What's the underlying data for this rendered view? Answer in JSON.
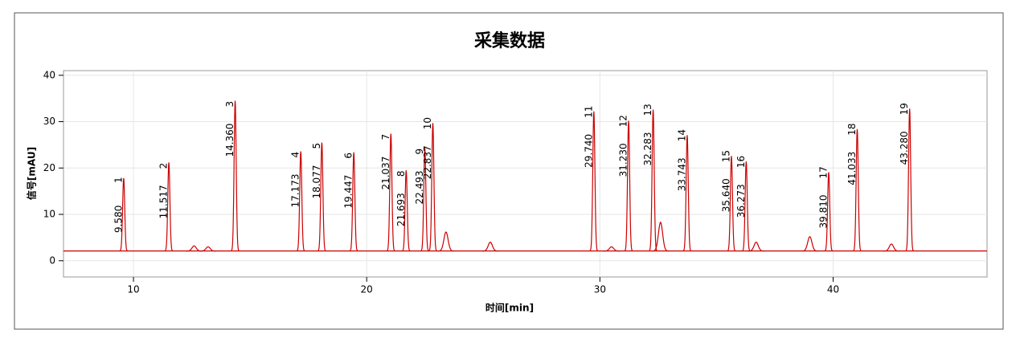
{
  "chart_data": {
    "type": "line",
    "title": "采集数据",
    "xlabel": "时间[min]",
    "ylabel": "信号[mAU]",
    "color": "#cc0000",
    "grid": true,
    "xlim": [
      7.0,
      46.6
    ],
    "ylim": [
      -3.5,
      41
    ],
    "xticks": [
      10,
      20,
      30,
      40
    ],
    "yticks": [
      0,
      10,
      20,
      30,
      40
    ],
    "baseline": 2.1,
    "x": [
      9.58,
      11.517,
      14.36,
      17.173,
      18.077,
      19.447,
      21.037,
      21.693,
      22.493,
      22.837,
      29.74,
      31.23,
      32.283,
      33.743,
      35.64,
      36.273,
      39.81,
      41.033,
      43.28
    ],
    "x_labels": [
      "9.580",
      "11.517",
      "14.360",
      "17.173",
      "18.077",
      "19.447",
      "21.037",
      "21.693",
      "22.493",
      "22.837",
      "29.740",
      "31.230",
      "32.283",
      "33.743",
      "35.640",
      "36.273",
      "39.810",
      "41.033",
      "43.280"
    ],
    "values": [
      17.8,
      21.2,
      34.5,
      23.6,
      25.5,
      23.4,
      27.4,
      19.5,
      24.3,
      29.7,
      32.2,
      30.2,
      32.6,
      27.1,
      22.6,
      21.4,
      19.1,
      28.4,
      32.8
    ],
    "peak_numbers": [
      1,
      2,
      3,
      4,
      5,
      6,
      7,
      8,
      9,
      10,
      11,
      12,
      13,
      14,
      15,
      16,
      17,
      18,
      19
    ],
    "minor_x": [
      12.6,
      13.2,
      23.4,
      25.3,
      30.5,
      32.6,
      36.7,
      39.0,
      42.5
    ],
    "minor_values": [
      3.2,
      3.0,
      6.2,
      4.0,
      3.0,
      8.3,
      4.0,
      5.2,
      3.6
    ]
  }
}
